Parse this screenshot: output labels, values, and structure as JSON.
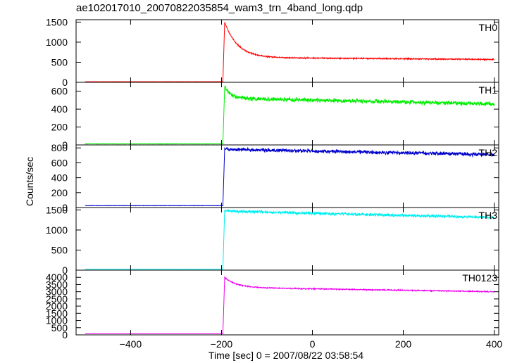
{
  "chart_data": {
    "type": "line",
    "title": "ae102017010_20070822035854_wam3_trn_4band_long.qdp",
    "xlabel": "Time [sec] 0 = 2007/08/22 03:58:54",
    "ylabel": "Counts/sec",
    "xlim": [
      -520,
      410
    ],
    "x_ticks": [
      -400,
      -200,
      0,
      200,
      400
    ],
    "burst_onset_x": -195,
    "grid": false,
    "panels": [
      {
        "name": "TH0",
        "color": "#ff0000",
        "ylim": [
          0,
          1560
        ],
        "y_ticks": [
          0,
          500,
          1000,
          1500
        ],
        "baseline": 15,
        "peak": 1500,
        "plateau_start": 620,
        "plateau_end": 570,
        "decay_sec": 28,
        "noise": 18,
        "series_samples": [
          {
            "x": -500,
            "y": 15
          },
          {
            "x": -196,
            "y": 15
          },
          {
            "x": -192,
            "y": 1520
          },
          {
            "x": -170,
            "y": 1000
          },
          {
            "x": -150,
            "y": 760
          },
          {
            "x": -100,
            "y": 640
          },
          {
            "x": 0,
            "y": 610
          },
          {
            "x": 200,
            "y": 590
          },
          {
            "x": 400,
            "y": 575
          }
        ]
      },
      {
        "name": "TH1",
        "color": "#00ee00",
        "ylim": [
          0,
          700
        ],
        "y_ticks": [
          0,
          200,
          400,
          600
        ],
        "baseline": 12,
        "peak": 650,
        "plateau_start": 520,
        "plateau_end": 460,
        "decay_sec": 15,
        "noise": 28,
        "series_samples": [
          {
            "x": -500,
            "y": 12
          },
          {
            "x": -196,
            "y": 12
          },
          {
            "x": -192,
            "y": 650
          },
          {
            "x": -150,
            "y": 540
          },
          {
            "x": 0,
            "y": 505
          },
          {
            "x": 200,
            "y": 485
          },
          {
            "x": 400,
            "y": 460
          }
        ]
      },
      {
        "name": "TH2",
        "color": "#0000cc",
        "ylim": [
          0,
          840
        ],
        "y_ticks": [
          0,
          200,
          400,
          600,
          800
        ],
        "baseline": 25,
        "peak": 790,
        "plateau_start": 780,
        "plateau_end": 710,
        "decay_sec": 5,
        "noise": 30,
        "series_samples": [
          {
            "x": -500,
            "y": 25
          },
          {
            "x": -196,
            "y": 25
          },
          {
            "x": -192,
            "y": 790
          },
          {
            "x": 0,
            "y": 760
          },
          {
            "x": 200,
            "y": 740
          },
          {
            "x": 400,
            "y": 710
          }
        ]
      },
      {
        "name": "TH3",
        "color": "#00eeee",
        "ylim": [
          0,
          1560
        ],
        "y_ticks": [
          0,
          500,
          1000,
          1500
        ],
        "baseline": 25,
        "peak": 1500,
        "plateau_start": 1470,
        "plateau_end": 1310,
        "decay_sec": 5,
        "noise": 45,
        "series_samples": [
          {
            "x": -500,
            "y": 25
          },
          {
            "x": -196,
            "y": 25
          },
          {
            "x": -192,
            "y": 1500
          },
          {
            "x": 0,
            "y": 1430
          },
          {
            "x": 200,
            "y": 1380
          },
          {
            "x": 400,
            "y": 1310
          }
        ]
      },
      {
        "name": "TH0123",
        "color": "#ee00ee",
        "ylim": [
          0,
          4500
        ],
        "y_ticks": [
          0,
          500,
          1000,
          1500,
          2000,
          2500,
          3000,
          3500,
          4000
        ],
        "baseline": 80,
        "peak": 4000,
        "plateau_start": 3300,
        "plateau_end": 3000,
        "decay_sec": 25,
        "noise": 45,
        "series_samples": [
          {
            "x": -500,
            "y": 80
          },
          {
            "x": -196,
            "y": 80
          },
          {
            "x": -192,
            "y": 4000
          },
          {
            "x": -150,
            "y": 3500
          },
          {
            "x": -100,
            "y": 3320
          },
          {
            "x": 0,
            "y": 3250
          },
          {
            "x": 200,
            "y": 3150
          },
          {
            "x": 400,
            "y": 3000
          }
        ]
      }
    ]
  }
}
